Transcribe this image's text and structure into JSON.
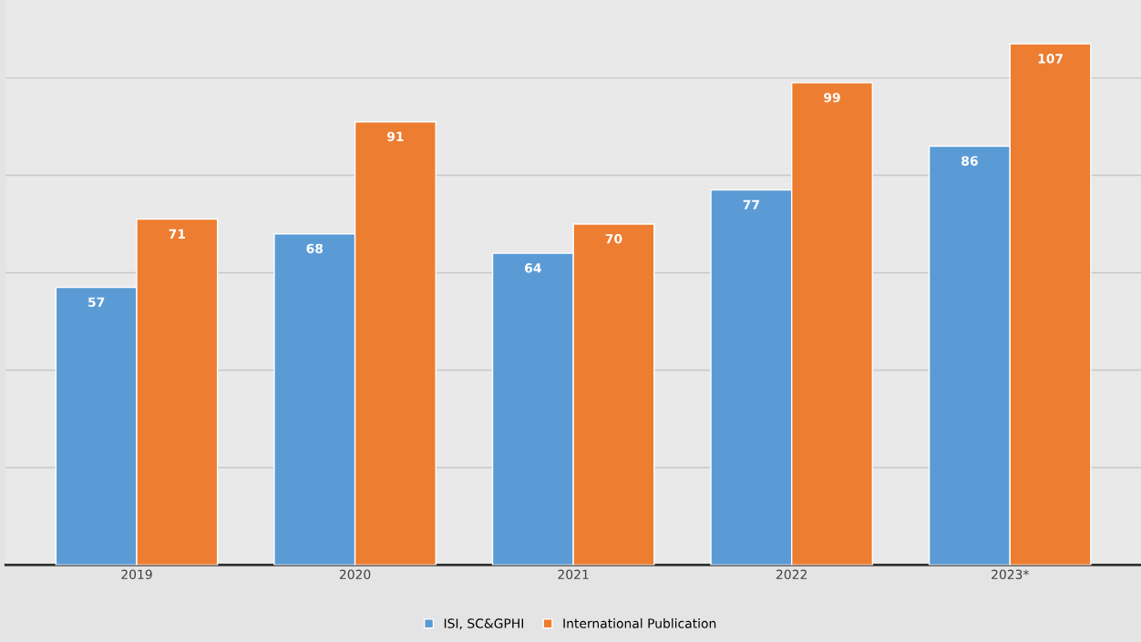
{
  "chart_data": {
    "type": "bar",
    "categories": [
      "2019",
      "2020",
      "2021",
      "2022",
      "2023*"
    ],
    "series": [
      {
        "name": "ISI, SC&GPHI",
        "color": "#5b9bd5",
        "values": [
          57,
          68,
          64,
          77,
          86
        ]
      },
      {
        "name": "International Publication",
        "color": "#ed7d31",
        "values": [
          71,
          91,
          70,
          99,
          107
        ]
      }
    ],
    "ylim": [
      0,
      116
    ],
    "yticks": [
      {
        "value": 0,
        "label": null
      },
      {
        "value": 20,
        "label": null
      },
      {
        "value": 40,
        "label": null
      },
      {
        "value": 60,
        "label": null
      },
      {
        "value": 80,
        "label": null
      },
      {
        "value": 100,
        "label": null
      }
    ],
    "tick_labels": "x",
    "grid": "y",
    "legend": "bottom",
    "data_labels": true
  }
}
